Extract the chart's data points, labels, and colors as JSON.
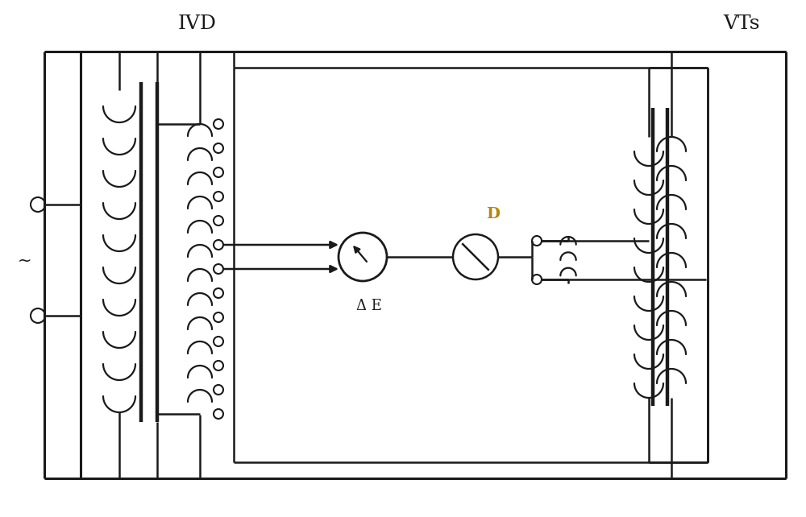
{
  "title_ivd": "IVD",
  "title_vts": "VTs",
  "label_delta_e": "Δ E",
  "label_d": "D",
  "bg_color": "#ffffff",
  "line_color": "#1a1a1a",
  "meter_d_color": "#b8860b",
  "fig_width": 10.0,
  "fig_height": 6.42,
  "lw_outer": 2.2,
  "lw_inner": 1.8,
  "lw_coil": 1.6
}
